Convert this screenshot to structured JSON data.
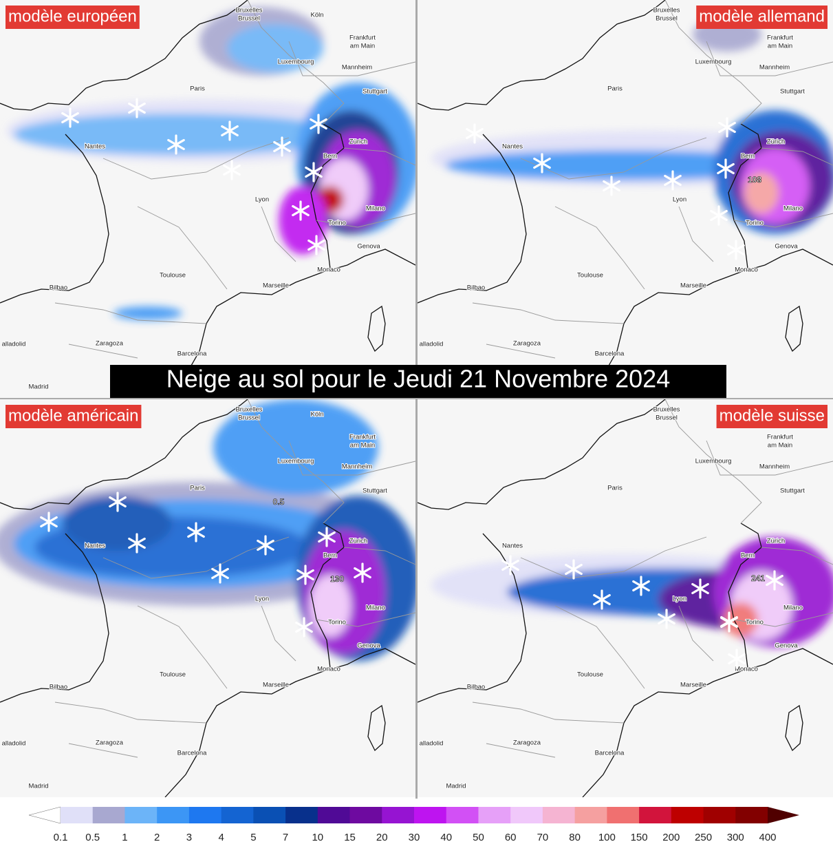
{
  "title": "Neige au sol pour le Jeudi 21 Novembre 2024",
  "panels": [
    {
      "label": "modèle européen",
      "contour_labels": []
    },
    {
      "label": "modèle allemand",
      "contour_labels": [
        108
      ]
    },
    {
      "label": "modèle américain",
      "contour_labels": [
        130,
        0.5
      ]
    },
    {
      "label": "modèle suisse",
      "contour_labels": [
        241
      ]
    }
  ],
  "cities": [
    "Bruxelles",
    "Brussel",
    "Köln",
    "Frankfurt",
    "am Main",
    "Luxembourg",
    "Mannheim",
    "Paris",
    "Stuttgart",
    "Nantes",
    "Zürich",
    "Bern",
    "Lyon",
    "Milano",
    "Torino",
    "Genova",
    "Monaco",
    "Toulouse",
    "Marseille",
    "Bilbao",
    "Zaragoza",
    "Barcelona",
    "alladolid",
    "Madrid"
  ],
  "legend": {
    "ticks": [
      0.1,
      0.5,
      1,
      2,
      3,
      4,
      5,
      7,
      10,
      15,
      20,
      30,
      40,
      50,
      60,
      70,
      80,
      100,
      150,
      200,
      250,
      300,
      400
    ],
    "colors": [
      "#e0e0f8",
      "#a8a8d0",
      "#6cb4f8",
      "#3c96f5",
      "#1e78f0",
      "#1464d2",
      "#0a50b4",
      "#08308c",
      "#500a96",
      "#6e0aa0",
      "#9614d2",
      "#be14f0",
      "#d250f5",
      "#e6a0f8",
      "#f0c8fa",
      "#f5b4d2",
      "#f5a0a0",
      "#f07070",
      "#d2143c",
      "#be0000",
      "#a00000",
      "#820000"
    ],
    "below_color": "#ffffff",
    "above_color": "#500000"
  }
}
